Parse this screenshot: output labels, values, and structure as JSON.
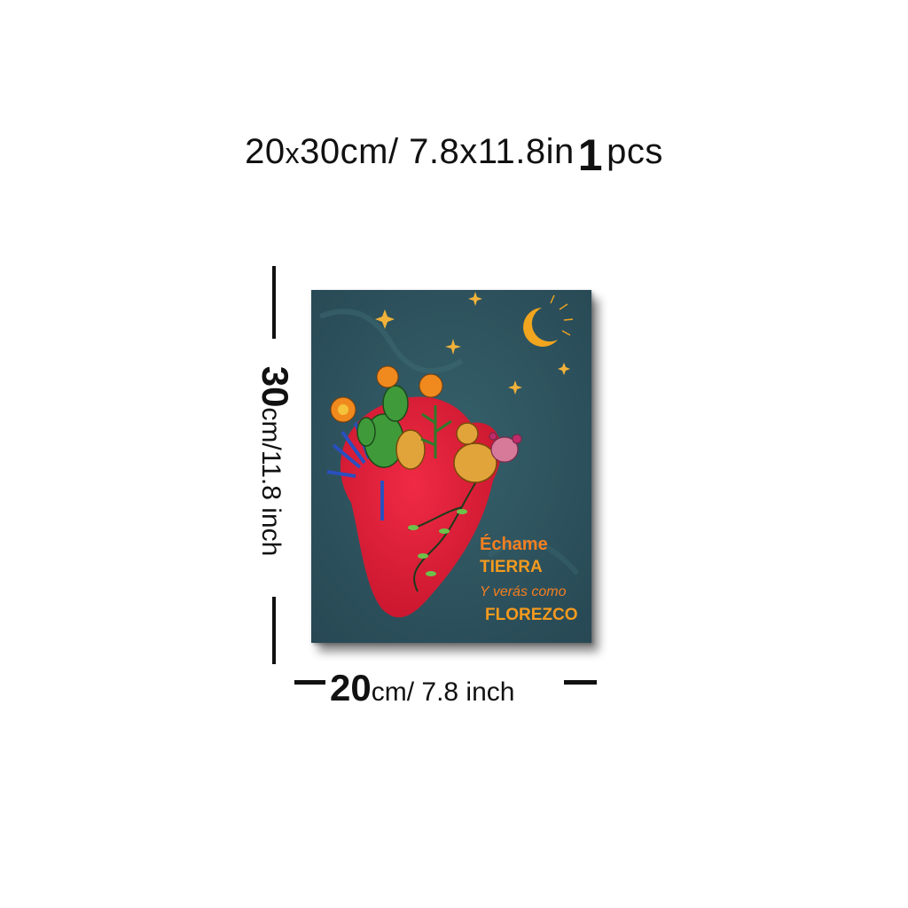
{
  "header": {
    "size_text": "20",
    "x": "x",
    "size_text2": "30cm/ 7.8x11.8in",
    "quantity": "1",
    "quantity_unit": "pcs"
  },
  "dimensions": {
    "height_value": "30",
    "height_unit": "cm/11.8 inch",
    "width_value": "20",
    "width_unit": "cm/ 7.8 inch"
  },
  "artwork": {
    "line1": "Échame",
    "line2": "TIERRA",
    "line3": "Y verás como",
    "line4": "FLOREZCO",
    "colors": {
      "background": "#2c4e5a",
      "heart": "#e3213a",
      "text_orange": "#f57f20",
      "moon": "#f2a51e",
      "cactus": "#3f9b3a"
    }
  }
}
